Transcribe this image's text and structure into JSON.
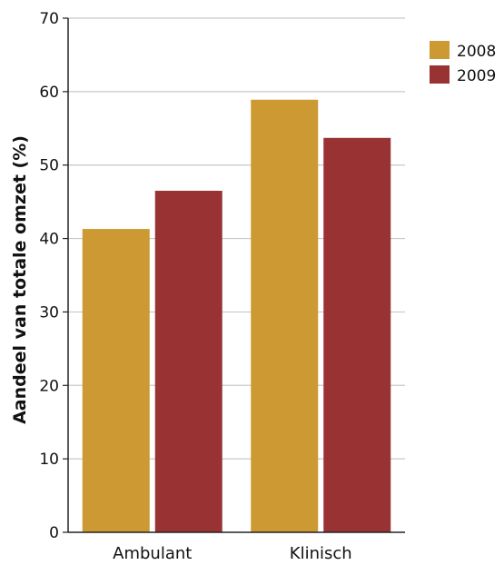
{
  "chart_data": {
    "type": "bar",
    "title": "",
    "xlabel": "",
    "ylabel": "Aandeel van totale omzet (%)",
    "categories": [
      "Ambulant",
      "Klinisch"
    ],
    "series": [
      {
        "name": "2008",
        "color": "#CC9933",
        "values": [
          41.3,
          58.9
        ]
      },
      {
        "name": "2009",
        "color": "#993333",
        "values": [
          46.5,
          53.7
        ]
      }
    ],
    "ylim": [
      0,
      70
    ],
    "yticks": [
      0,
      10,
      20,
      30,
      40,
      50,
      60,
      70
    ],
    "grid": true,
    "legend_position": "top-right"
  }
}
